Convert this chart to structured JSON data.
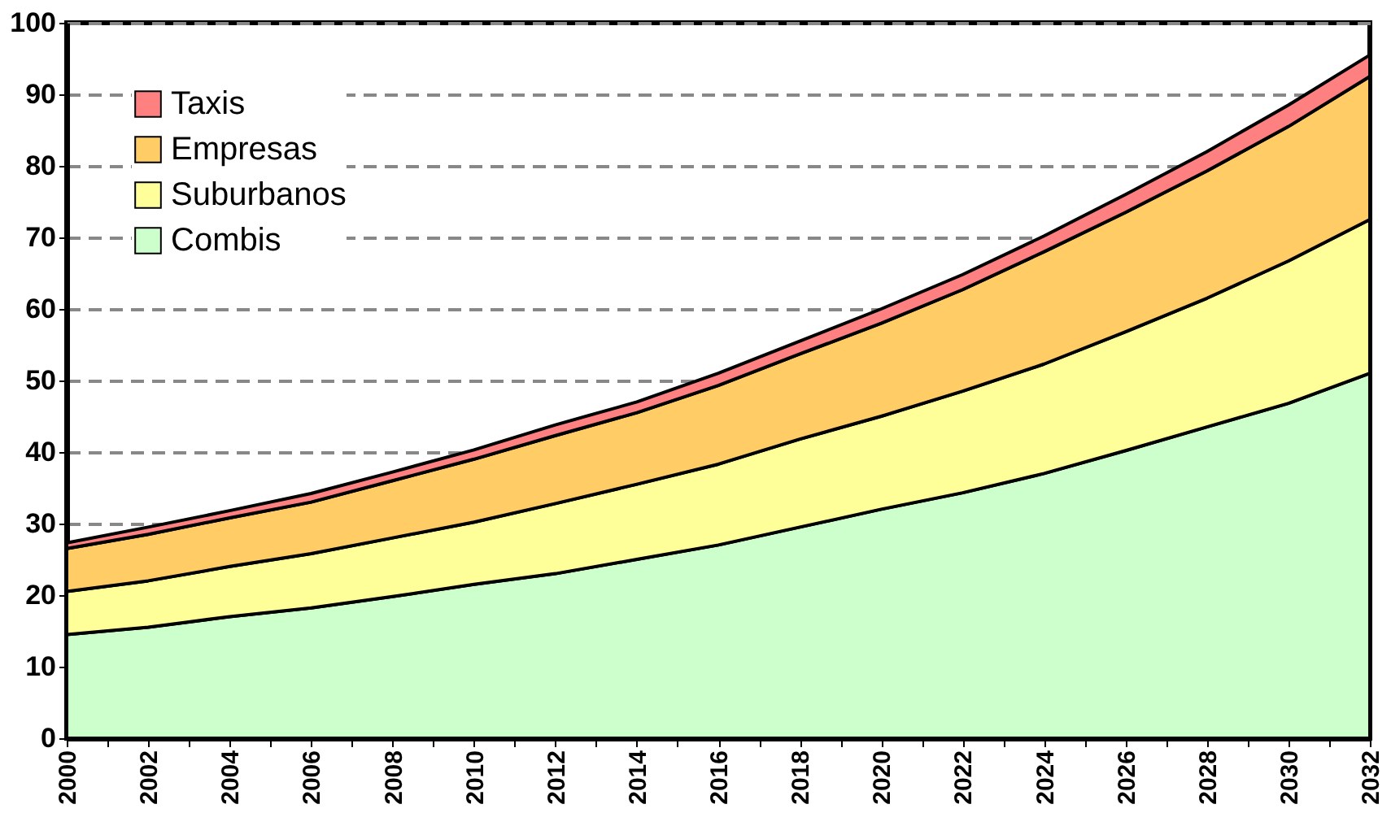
{
  "chart_data": {
    "type": "area",
    "stacked": true,
    "x": [
      2000,
      2002,
      2004,
      2006,
      2008,
      2010,
      2012,
      2014,
      2016,
      2018,
      2020,
      2022,
      2024,
      2026,
      2028,
      2030,
      2032
    ],
    "series": [
      {
        "name": "Combis",
        "color": "#ccffcc",
        "values": [
          14.5,
          15.5,
          17,
          18.2,
          19.8,
          21.5,
          23,
          25,
          27,
          29.5,
          32,
          34.3,
          37,
          40.2,
          43.5,
          46.8,
          51
        ]
      },
      {
        "name": "Suburbanos",
        "color": "#ffff99",
        "values": [
          6,
          6.5,
          7,
          7.6,
          8.2,
          8.7,
          9.8,
          10.5,
          11.3,
          12.3,
          13,
          14.2,
          15.3,
          16.6,
          18,
          19.9,
          21.5
        ]
      },
      {
        "name": "Empresas",
        "color": "#ffcc66",
        "values": [
          6,
          6.5,
          6.8,
          7.2,
          8,
          8.8,
          9.5,
          10,
          11,
          11.9,
          13,
          14.2,
          15.7,
          16.7,
          17.8,
          18.8,
          20
        ]
      },
      {
        "name": "Taxis",
        "color": "#ff8080",
        "values": [
          0.8,
          1,
          1,
          1.2,
          1.2,
          1.3,
          1.5,
          1.5,
          1.7,
          1.8,
          2,
          2.1,
          2.2,
          2.5,
          2.7,
          3,
          3
        ]
      }
    ],
    "xlim": [
      2000,
      2032
    ],
    "xticks": [
      2000,
      {
        "value": 2001,
        "label": null
      },
      2002,
      {
        "value": 2003,
        "label": null
      },
      2004,
      {
        "value": 2005,
        "label": null
      },
      2006,
      {
        "value": 2007,
        "label": null
      },
      2008,
      {
        "value": 2009,
        "label": null
      },
      2010,
      {
        "value": 2011,
        "label": null
      },
      2012,
      {
        "value": 2013,
        "label": null
      },
      2014,
      {
        "value": 2015,
        "label": null
      },
      2016,
      {
        "value": 2017,
        "label": null
      },
      2018,
      {
        "value": 2019,
        "label": null
      },
      2020,
      {
        "value": 2021,
        "label": null
      },
      2022,
      {
        "value": 2023,
        "label": null
      },
      2024,
      {
        "value": 2025,
        "label": null
      },
      2026,
      {
        "value": 2027,
        "label": null
      },
      2028,
      {
        "value": 2029,
        "label": null
      },
      2030,
      {
        "value": 2031,
        "label": null
      },
      2032
    ],
    "ylim": [
      0,
      100
    ],
    "yticks": [
      0,
      10,
      20,
      30,
      40,
      50,
      60,
      70,
      80,
      90,
      100
    ],
    "grid": "y",
    "legend": "top left"
  }
}
